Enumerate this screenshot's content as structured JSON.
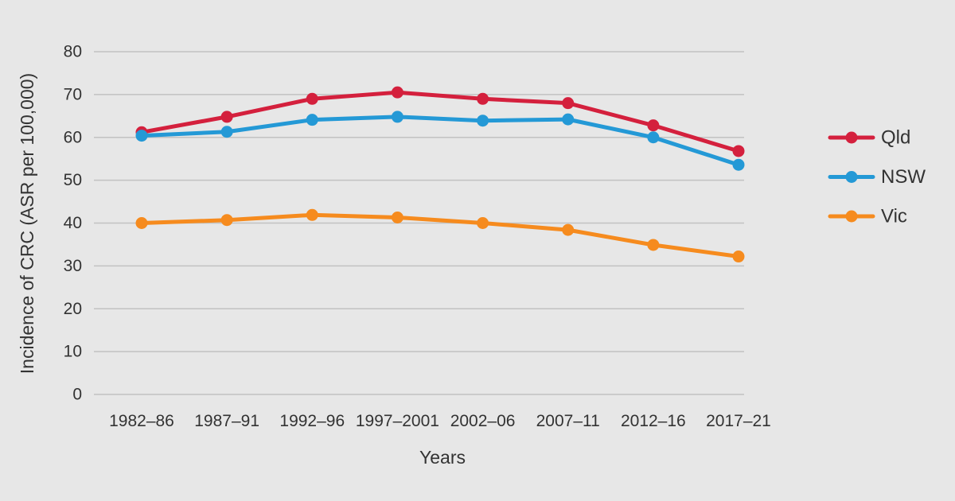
{
  "chart_data": {
    "type": "line",
    "xlabel": "Years",
    "ylabel": "Incidence of CRC (ASR per 100,000)",
    "categories": [
      "1982–86",
      "1987–91",
      "1992–96",
      "1997–2001",
      "2002–06",
      "2007–11",
      "2012–16",
      "2017–21"
    ],
    "series": [
      {
        "name": "Qld",
        "color": "#d4203d",
        "values": [
          61.2,
          64.8,
          69.0,
          70.5,
          69.0,
          68.0,
          62.8,
          56.8
        ]
      },
      {
        "name": "NSW",
        "color": "#2499d6",
        "values": [
          60.4,
          61.3,
          64.1,
          64.8,
          63.9,
          64.2,
          60.0,
          53.6
        ]
      },
      {
        "name": "Vic",
        "color": "#f68b1e",
        "values": [
          40.0,
          40.7,
          41.9,
          41.3,
          40.0,
          38.4,
          34.9,
          32.2
        ]
      }
    ],
    "ylim": [
      0,
      80
    ],
    "ytick_step": 10,
    "yticks": [
      "0",
      "10",
      "20",
      "30",
      "40",
      "50",
      "60",
      "70",
      "80"
    ],
    "grid": "horizontal-only",
    "legend_position": "right",
    "marker": "circle",
    "colors": {
      "background": "#e7e7e7",
      "gridline": "#c2c2c2",
      "text": "#333333"
    }
  }
}
